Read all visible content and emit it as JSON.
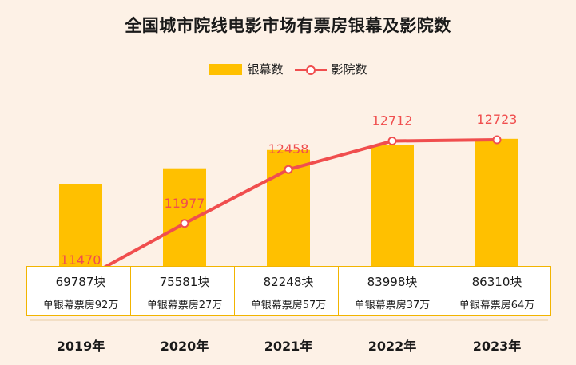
{
  "title": "全国城市院线电影市场有票房银幕及影院数",
  "legend": {
    "bar_label": "银幕数",
    "line_label": "影院数"
  },
  "colors": {
    "bar": "#ffc000",
    "line": "#f04e4e",
    "box_border": "#f2b400",
    "background": "#fdf1e6"
  },
  "chart_data": {
    "type": "bar",
    "title": "全国城市院线电影市场有票房银幕及影院数",
    "categories": [
      "2019年",
      "2020年",
      "2021年",
      "2022年",
      "2023年"
    ],
    "series": [
      {
        "name": "银幕数",
        "type": "bar",
        "unit": "块",
        "values": [
          69787,
          75581,
          82248,
          83998,
          86310
        ]
      },
      {
        "name": "影院数",
        "type": "line",
        "values": [
          11470,
          11977,
          12458,
          12712,
          12723
        ]
      }
    ],
    "box_text": [
      {
        "count": "69787块",
        "per_screen": "单银幕票房92万"
      },
      {
        "count": "75581块",
        "per_screen": "单银幕票房27万"
      },
      {
        "count": "82248块",
        "per_screen": "单银幕票房57万"
      },
      {
        "count": "83998块",
        "per_screen": "单银幕票房37万"
      },
      {
        "count": "86310块",
        "per_screen": "单银幕票房64万"
      }
    ],
    "bar_axis_range": [
      40000,
      88000
    ],
    "line_axis_range": [
      11100,
      13100
    ],
    "line_labels": [
      "11470",
      "11977",
      "12458",
      "12712",
      "12723"
    ],
    "legend_position": "top-center",
    "grid": false
  }
}
